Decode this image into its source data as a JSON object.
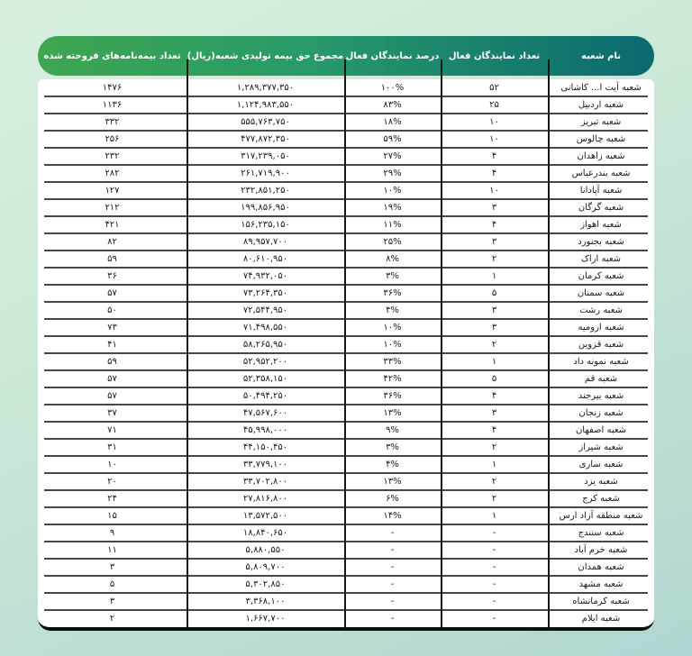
{
  "colors": {
    "background_top": "#d8efdf",
    "background_bottom": "#b1d6d1",
    "header_gradient_green": "#3ea64f",
    "header_gradient_teal": "#0b696f",
    "row_separator": "#474747",
    "table_border": "#0d0d0d",
    "header_text": "#ffffff",
    "body_text": "#1b1b1b"
  },
  "chart_data": {
    "type": "table",
    "direction": "rtl",
    "title": "",
    "columns": [
      {
        "key": "name",
        "label": "نام شعبه"
      },
      {
        "key": "agents",
        "label": "تعداد نمایندگان فعال"
      },
      {
        "key": "pct",
        "label": "درصد نمایندگان فعال"
      },
      {
        "key": "premium",
        "label": "مجموع حق بیمه تولیدی شعبه(ریال)"
      },
      {
        "key": "policies",
        "label": "تعداد بیمه‌نامه‌های فروخته شده"
      }
    ],
    "rows": [
      {
        "name": "شعبه آیت ا... کاشانی",
        "agents": "۵۲",
        "pct": "۱۰۰%",
        "premium": "۱,۲۸۹,۳۷۷,۳۵۰",
        "policies": "۱۴۷۶"
      },
      {
        "name": "شعبه اردبیل",
        "agents": "۲۵",
        "pct": "۸۳%",
        "premium": "۱,۱۲۴,۹۸۳,۵۵۰",
        "policies": "۱۱۳۶"
      },
      {
        "name": "شعبه تبریز",
        "agents": "۱۰",
        "pct": "۱۸%",
        "premium": "۵۵۵,۷۶۳,۷۵۰",
        "policies": "۳۳۲"
      },
      {
        "name": "شعبه چالوس",
        "agents": "۱۰",
        "pct": "۵۹%",
        "premium": "۴۷۷,۸۷۲,۳۵۰",
        "policies": "۲۵۶"
      },
      {
        "name": "شعبه زاهدان",
        "agents": "۴",
        "pct": "۲۷%",
        "premium": "۳۱۷,۲۳۹,۰۵۰",
        "policies": "۲۳۲"
      },
      {
        "name": "شعبه بندرعباس",
        "agents": "۴",
        "pct": "۲۹%",
        "premium": "۲۶۱,۷۱۹,۹۰۰",
        "policies": "۲۸۲"
      },
      {
        "name": "شعبه آپادانا",
        "agents": "۱۰",
        "pct": "۱۰%",
        "premium": "۲۳۲,۸۵۱,۲۵۰",
        "policies": "۱۲۷"
      },
      {
        "name": "شعبه گرگان",
        "agents": "۳",
        "pct": "۱۹%",
        "premium": "۱۹۹,۸۵۶,۹۵۰",
        "policies": "۲۱۲"
      },
      {
        "name": "شعبه اهواز",
        "agents": "۴",
        "pct": "۱۱%",
        "premium": "۱۵۶,۲۳۵,۱۵۰",
        "policies": "۴۲۱"
      },
      {
        "name": "شعبه بجنورد",
        "agents": "۳",
        "pct": "۲۵%",
        "premium": "۸۹,۹۵۷,۷۰۰",
        "policies": "۸۲"
      },
      {
        "name": "شعبه اراک",
        "agents": "۲",
        "pct": "۸%",
        "premium": "۸۰,۶۱۰,۹۵۰",
        "policies": "۵۹"
      },
      {
        "name": "شعبه کرمان",
        "agents": "۱",
        "pct": "۳%",
        "premium": "۷۴,۹۳۲,۰۵۰",
        "policies": "۳۶"
      },
      {
        "name": "شعبه سمنان",
        "agents": "۵",
        "pct": "۳۶%",
        "premium": "۷۳,۲۶۴,۳۵۰",
        "policies": "۵۷"
      },
      {
        "name": "شعبه رشت",
        "agents": "۳",
        "pct": "۴%",
        "premium": "۷۲,۵۴۴,۹۵۰",
        "policies": "۵۰"
      },
      {
        "name": "شعبه ارومیه",
        "agents": "۳",
        "pct": "۱۰%",
        "premium": "۷۱,۴۹۸,۵۵۰",
        "policies": "۷۳"
      },
      {
        "name": "شعبه قزوین",
        "agents": "۲",
        "pct": "۱۰%",
        "premium": "۵۸,۲۶۵,۹۵۰",
        "policies": "۴۱"
      },
      {
        "name": "شعبه نمونه داد",
        "agents": "۱",
        "pct": "۳۳%",
        "premium": "۵۲,۹۵۲,۲۰۰",
        "policies": "۵۹"
      },
      {
        "name": "شعبه قم",
        "agents": "۵",
        "pct": "۴۲%",
        "premium": "۵۲,۳۵۸,۱۵۰",
        "policies": "۵۷"
      },
      {
        "name": "شعبه بیرجند",
        "agents": "۴",
        "pct": "۳۶%",
        "premium": "۵۰,۴۹۴,۲۵۰",
        "policies": "۵۷"
      },
      {
        "name": "شعبه زنجان",
        "agents": "۳",
        "pct": "۱۳%",
        "premium": "۴۷,۵۶۷,۶۰۰",
        "policies": "۳۷"
      },
      {
        "name": "شعبه اصفهان",
        "agents": "۴",
        "pct": "۹%",
        "premium": "۴۵,۹۹۸,۰۰۰",
        "policies": "۷۱"
      },
      {
        "name": "شعبه شیراز",
        "agents": "۲",
        "pct": "۳%",
        "premium": "۴۴,۱۵۰,۴۵۰",
        "policies": "۳۱"
      },
      {
        "name": "شعبه ساری",
        "agents": "۱",
        "pct": "۴%",
        "premium": "۳۳,۷۷۹,۱۰۰",
        "policies": "۱۰"
      },
      {
        "name": "شعبه یزد",
        "agents": "۲",
        "pct": "۱۳%",
        "premium": "۳۳,۷۰۲,۸۰۰",
        "policies": "۲۰"
      },
      {
        "name": "شعبه کرج",
        "agents": "۲",
        "pct": "۶%",
        "premium": "۲۷,۸۱۶,۸۰۰",
        "policies": "۲۴"
      },
      {
        "name": "شعبه منطقه آزاد ارس",
        "agents": "۱",
        "pct": "۱۴%",
        "premium": "۱۳,۵۷۲,۵۰۰",
        "policies": "۱۵"
      },
      {
        "name": "شعبه سنندج",
        "agents": "-",
        "pct": "-",
        "premium": "۱۸,۸۴۰,۶۵۰",
        "policies": "۹"
      },
      {
        "name": "شعبه خرم آباد",
        "agents": "-",
        "pct": "-",
        "premium": "۵,۸۸۰,۵۵۰",
        "policies": "۱۱"
      },
      {
        "name": "شعبه همدان",
        "agents": "-",
        "pct": "-",
        "premium": "۵,۸۰۹,۷۰۰",
        "policies": "۳"
      },
      {
        "name": "شعبه مشهد",
        "agents": "-",
        "pct": "-",
        "premium": "۵,۳۰۲,۸۵۰",
        "policies": "۵"
      },
      {
        "name": "شعبه کرمانشاه",
        "agents": "-",
        "pct": "-",
        "premium": "۳,۳۶۸,۱۰۰",
        "policies": "۳"
      },
      {
        "name": "شعبه ایلام",
        "agents": "-",
        "pct": "-",
        "premium": "۱,۶۶۷,۷۰۰",
        "policies": "۲"
      }
    ]
  }
}
